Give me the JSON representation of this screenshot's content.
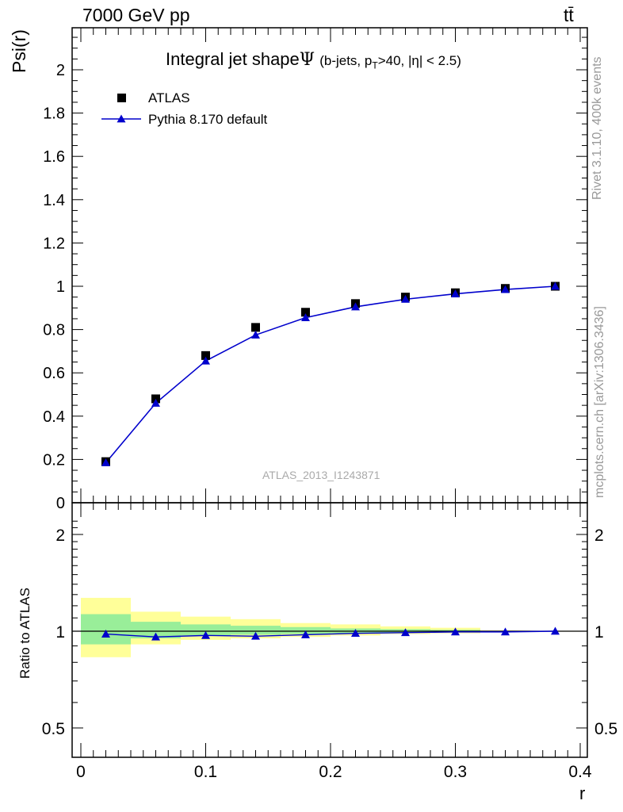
{
  "header": {
    "energy_label": "7000 GeV pp",
    "process_label": "tt̄"
  },
  "side_labels": {
    "rivet": "Rivet 3.1.10,  400k events",
    "source": "mcplots.cern.ch [arXiv:1306.3436]"
  },
  "watermark": "ATLAS_2013_I1243871",
  "chart_data": [
    {
      "type": "scatter",
      "title": "Integral jet shape Ψ (b-jets, pT>40, |η| < 2.5)",
      "title_parts": {
        "main": "Integral jet shape",
        "psi": "Ψ",
        "pre": "(b-jets, p",
        "sub": "T",
        "post": ">40, |η| < 2.5)"
      },
      "xlabel": "",
      "ylabel": "Psi(r)",
      "xlim": [
        0,
        0.4
      ],
      "ylim": [
        0,
        2.2
      ],
      "x_ticks": [
        0,
        0.1,
        0.2,
        0.3,
        0.4
      ],
      "y_ticks": [
        0,
        0.2,
        0.4,
        0.6,
        0.8,
        1,
        1.2,
        1.4,
        1.6,
        1.8,
        2
      ],
      "y_tick_labels": [
        "0",
        "0.2",
        "0.4",
        "0.6",
        "0.8",
        "1",
        "1.2",
        "1.4",
        "1.6",
        "1.8",
        "2"
      ],
      "legend_position": "top-left",
      "series": [
        {
          "name": "ATLAS",
          "marker": "square",
          "color": "#000000",
          "x": [
            0.02,
            0.06,
            0.1,
            0.14,
            0.18,
            0.22,
            0.26,
            0.3,
            0.34,
            0.38
          ],
          "y": [
            0.19,
            0.48,
            0.68,
            0.81,
            0.88,
            0.92,
            0.95,
            0.97,
            0.99,
            1.0
          ]
        },
        {
          "name": "Pythia 8.170 default",
          "marker": "triangle",
          "color": "#0000cc",
          "line": true,
          "x": [
            0.02,
            0.06,
            0.1,
            0.14,
            0.18,
            0.22,
            0.26,
            0.3,
            0.34,
            0.38
          ],
          "y": [
            0.185,
            0.46,
            0.655,
            0.775,
            0.855,
            0.905,
            0.94,
            0.965,
            0.985,
            1.0
          ]
        }
      ]
    },
    {
      "type": "line",
      "xlabel": "r",
      "ylabel": "Ratio to ATLAS",
      "xlim": [
        0,
        0.4
      ],
      "ylim": [
        0.4,
        2.3
      ],
      "log_y": true,
      "x_ticks": [
        0,
        0.1,
        0.2,
        0.3,
        0.4
      ],
      "x_tick_labels": [
        "0",
        "0.1",
        "0.2",
        "0.3",
        "0.4"
      ],
      "y_ticks": [
        0.5,
        1,
        2
      ],
      "y_tick_labels": [
        "0.5",
        "1",
        "2"
      ],
      "bins": [
        {
          "x0": 0.0,
          "x1": 0.04,
          "band_inner": [
            0.91,
            1.13
          ],
          "band_outer": [
            0.83,
            1.27
          ]
        },
        {
          "x0": 0.04,
          "x1": 0.08,
          "band_inner": [
            0.95,
            1.07
          ],
          "band_outer": [
            0.91,
            1.15
          ]
        },
        {
          "x0": 0.08,
          "x1": 0.12,
          "band_inner": [
            0.97,
            1.05
          ],
          "band_outer": [
            0.94,
            1.11
          ]
        },
        {
          "x0": 0.12,
          "x1": 0.16,
          "band_inner": [
            0.975,
            1.04
          ],
          "band_outer": [
            0.95,
            1.09
          ]
        },
        {
          "x0": 0.16,
          "x1": 0.2,
          "band_inner": [
            0.98,
            1.03
          ],
          "band_outer": [
            0.96,
            1.06
          ]
        },
        {
          "x0": 0.2,
          "x1": 0.24,
          "band_inner": [
            0.985,
            1.02
          ],
          "band_outer": [
            0.97,
            1.05
          ]
        },
        {
          "x0": 0.24,
          "x1": 0.28,
          "band_inner": [
            0.99,
            1.015
          ],
          "band_outer": [
            0.98,
            1.035
          ]
        },
        {
          "x0": 0.28,
          "x1": 0.32,
          "band_inner": [
            0.992,
            1.01
          ],
          "band_outer": [
            0.985,
            1.025
          ]
        },
        {
          "x0": 0.32,
          "x1": 0.36,
          "band_inner": [
            0.997,
            1.003
          ],
          "band_outer": [
            0.995,
            1.005
          ]
        },
        {
          "x0": 0.36,
          "x1": 0.4,
          "band_inner": [
            0.998,
            1.002
          ],
          "band_outer": [
            0.997,
            1.003
          ]
        }
      ],
      "band_colors": {
        "inner": "#99ee99",
        "outer": "#ffff99"
      },
      "reference_line": 1.0,
      "series": [
        {
          "name": "Pythia 8.170 default",
          "marker": "triangle",
          "color": "#0000cc",
          "x": [
            0.02,
            0.06,
            0.1,
            0.14,
            0.18,
            0.22,
            0.26,
            0.3,
            0.34,
            0.38
          ],
          "y": [
            0.98,
            0.96,
            0.97,
            0.965,
            0.975,
            0.985,
            0.99,
            0.995,
            0.995,
            1.0
          ]
        }
      ]
    }
  ]
}
